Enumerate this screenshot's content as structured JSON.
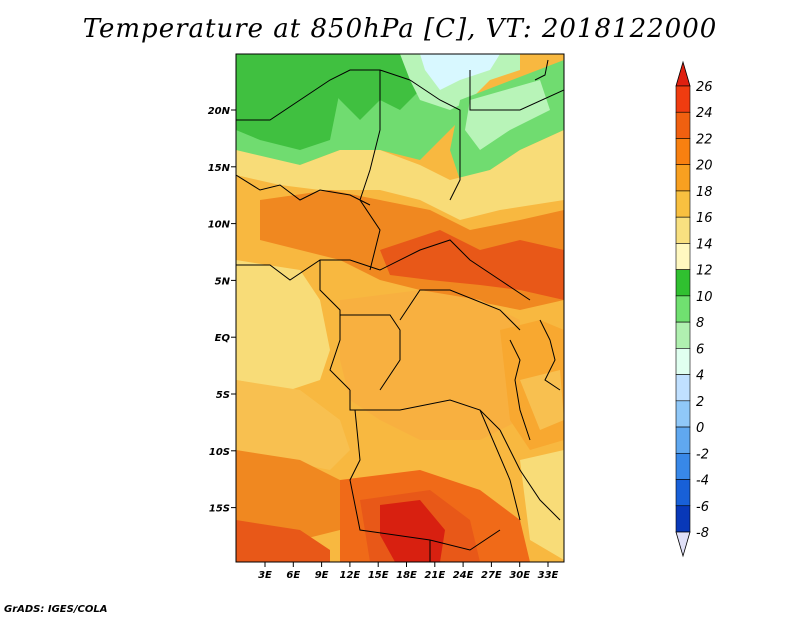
{
  "title": "Temperature at 850hPa [C], VT: 2018122000",
  "credit": "GrADS: IGES/COLA",
  "axes": {
    "lat_ticks": [
      "20N",
      "15N",
      "10N",
      "5N",
      "EQ",
      "5S",
      "10S",
      "15S"
    ],
    "lon_ticks": [
      "3E",
      "6E",
      "9E",
      "12E",
      "15E",
      "18E",
      "21E",
      "24E",
      "27E",
      "30E",
      "33E"
    ]
  },
  "colorbar": {
    "labels": [
      "26",
      "24",
      "22",
      "20",
      "18",
      "16",
      "14",
      "12",
      "10",
      "8",
      "6",
      "4",
      "2",
      "0",
      "-2",
      "-4",
      "-6",
      "-8"
    ],
    "colors": [
      "#e02010",
      "#f03c10",
      "#f06010",
      "#f88010",
      "#f8a020",
      "#f8c040",
      "#f8e080",
      "#fff8c0",
      "#30c030",
      "#70e070",
      "#b0f0b0",
      "#e0fff0",
      "#c0e0ff",
      "#90c8f8",
      "#60a8f0",
      "#3888e8",
      "#1860d8",
      "#0838b8",
      "#101880"
    ]
  },
  "colors": {
    "land_border": "#000000",
    "c12": "#40c040",
    "c10": "#70dc70",
    "c8": "#b8f4b8",
    "c6": "#d8f8ff",
    "c14": "#f8f0a0",
    "c16": "#f8dc78",
    "c18": "#f8c050",
    "c20": "#f8a830",
    "c22": "#f08820",
    "c24": "#e85818",
    "c26": "#d82010"
  }
}
